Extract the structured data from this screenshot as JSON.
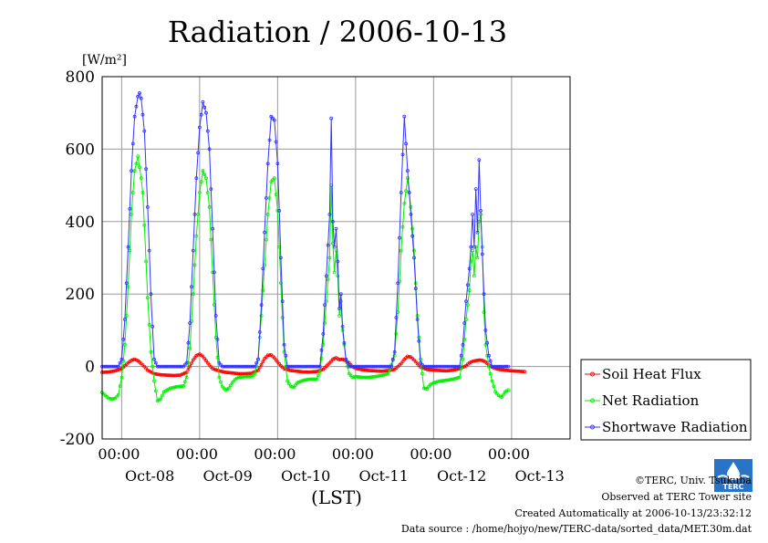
{
  "chart_data": {
    "type": "line",
    "title": "Radiation / 2006-10-13",
    "ylabel": "[W/m²]",
    "xlabel": "(LST)",
    "ylim": [
      -200,
      800
    ],
    "yticks": [
      -200,
      0,
      200,
      400,
      600,
      800
    ],
    "x_range_hours": [
      -6,
      138
    ],
    "x_tick_labels": [
      {
        "time": "00:00",
        "date": "Oct-08"
      },
      {
        "time": "00:00",
        "date": "Oct-09"
      },
      {
        "time": "00:00",
        "date": "Oct-10"
      },
      {
        "time": "00:00",
        "date": "Oct-11"
      },
      {
        "time": "00:00",
        "date": "Oct-12"
      },
      {
        "time": "00:00",
        "date": "Oct-13"
      }
    ],
    "grid": true,
    "legend_position": "right",
    "series": [
      {
        "name": "Soil Heat Flux",
        "color": "#ff0000",
        "points": [
          [
            -6,
            -16
          ],
          [
            -4,
            -15
          ],
          [
            -2,
            -12
          ],
          [
            0,
            -6
          ],
          [
            2,
            10
          ],
          [
            3,
            17
          ],
          [
            4,
            20
          ],
          [
            5,
            16
          ],
          [
            6,
            8
          ],
          [
            7,
            0
          ],
          [
            8,
            -10
          ],
          [
            10,
            -20
          ],
          [
            12,
            -23
          ],
          [
            14,
            -24
          ],
          [
            16,
            -25
          ],
          [
            18,
            -24
          ],
          [
            20,
            -16
          ],
          [
            21,
            0
          ],
          [
            22,
            18
          ],
          [
            23,
            30
          ],
          [
            24,
            34
          ],
          [
            25,
            28
          ],
          [
            26,
            16
          ],
          [
            27,
            4
          ],
          [
            28,
            -6
          ],
          [
            30,
            -12
          ],
          [
            32,
            -16
          ],
          [
            34,
            -18
          ],
          [
            36,
            -20
          ],
          [
            38,
            -20
          ],
          [
            40,
            -19
          ],
          [
            42,
            -10
          ],
          [
            43,
            5
          ],
          [
            44,
            22
          ],
          [
            45,
            31
          ],
          [
            46,
            32
          ],
          [
            47,
            24
          ],
          [
            48,
            12
          ],
          [
            49,
            2
          ],
          [
            50,
            -6
          ],
          [
            52,
            -11
          ],
          [
            54,
            -13
          ],
          [
            56,
            -15
          ],
          [
            58,
            -15
          ],
          [
            60,
            -14
          ],
          [
            62,
            -8
          ],
          [
            64,
            10
          ],
          [
            65,
            20
          ],
          [
            66,
            24
          ],
          [
            67,
            19
          ],
          [
            68,
            20
          ],
          [
            69,
            16
          ],
          [
            70,
            10
          ],
          [
            71,
            0
          ],
          [
            72,
            -5
          ],
          [
            74,
            -9
          ],
          [
            76,
            -11
          ],
          [
            78,
            -12
          ],
          [
            80,
            -13
          ],
          [
            82,
            -11
          ],
          [
            84,
            -8
          ],
          [
            86,
            8
          ],
          [
            87,
            20
          ],
          [
            88,
            28
          ],
          [
            89,
            26
          ],
          [
            90,
            18
          ],
          [
            91,
            8
          ],
          [
            92,
            -2
          ],
          [
            94,
            -8
          ],
          [
            96,
            -10
          ],
          [
            98,
            -11
          ],
          [
            100,
            -12
          ],
          [
            102,
            -10
          ],
          [
            104,
            -6
          ],
          [
            106,
            2
          ],
          [
            107,
            10
          ],
          [
            108,
            14
          ],
          [
            109,
            16
          ],
          [
            110,
            18
          ],
          [
            111,
            17
          ],
          [
            112,
            12
          ],
          [
            113,
            5
          ],
          [
            114,
            -2
          ],
          [
            116,
            -8
          ],
          [
            118,
            -10
          ],
          [
            120,
            -12
          ],
          [
            122,
            -13
          ],
          [
            124,
            -14
          ]
        ]
      },
      {
        "name": "Net Radiation",
        "color": "#00ee00",
        "points": [
          [
            -6,
            -72
          ],
          [
            -5,
            -80
          ],
          [
            -4,
            -88
          ],
          [
            -3,
            -90
          ],
          [
            -2,
            -88
          ],
          [
            -1,
            -78
          ],
          [
            0,
            -30
          ],
          [
            1,
            60
          ],
          [
            2,
            220
          ],
          [
            3,
            420
          ],
          [
            4,
            540
          ],
          [
            5,
            580
          ],
          [
            6,
            520
          ],
          [
            6.5,
            480
          ],
          [
            7,
            390
          ],
          [
            8,
            190
          ],
          [
            9,
            40
          ],
          [
            10,
            -40
          ],
          [
            11,
            -95
          ],
          [
            12,
            -90
          ],
          [
            13,
            -70
          ],
          [
            15,
            -60
          ],
          [
            17,
            -56
          ],
          [
            19,
            -54
          ],
          [
            20,
            -30
          ],
          [
            21,
            50
          ],
          [
            22,
            200
          ],
          [
            23,
            360
          ],
          [
            24,
            480
          ],
          [
            25,
            540
          ],
          [
            26,
            520
          ],
          [
            27,
            440
          ],
          [
            28,
            260
          ],
          [
            29,
            80
          ],
          [
            30,
            -30
          ],
          [
            31,
            -55
          ],
          [
            32,
            -65
          ],
          [
            33,
            -60
          ],
          [
            34,
            -45
          ],
          [
            35,
            -35
          ],
          [
            36,
            -30
          ],
          [
            38,
            -28
          ],
          [
            40,
            -28
          ],
          [
            41,
            -20
          ],
          [
            42,
            20
          ],
          [
            43,
            140
          ],
          [
            44,
            280
          ],
          [
            45,
            420
          ],
          [
            46,
            510
          ],
          [
            47,
            520
          ],
          [
            48,
            430
          ],
          [
            49,
            230
          ],
          [
            50,
            40
          ],
          [
            51,
            -40
          ],
          [
            52,
            -55
          ],
          [
            53,
            -58
          ],
          [
            54,
            -45
          ],
          [
            56,
            -38
          ],
          [
            58,
            -35
          ],
          [
            60,
            -35
          ],
          [
            61,
            -15
          ],
          [
            62,
            60
          ],
          [
            63,
            180
          ],
          [
            64,
            300
          ],
          [
            64.5,
            500
          ],
          [
            65,
            340
          ],
          [
            65.5,
            260
          ],
          [
            66,
            320
          ],
          [
            66.5,
            250
          ],
          [
            67,
            140
          ],
          [
            67.5,
            180
          ],
          [
            68,
            100
          ],
          [
            69,
            20
          ],
          [
            70,
            -20
          ],
          [
            71,
            -30
          ],
          [
            72,
            -28
          ],
          [
            74,
            -30
          ],
          [
            76,
            -30
          ],
          [
            78,
            -28
          ],
          [
            80,
            -25
          ],
          [
            82,
            -20
          ],
          [
            84,
            30
          ],
          [
            85,
            150
          ],
          [
            86,
            320
          ],
          [
            87,
            450
          ],
          [
            88,
            520
          ],
          [
            89,
            440
          ],
          [
            90,
            320
          ],
          [
            91,
            140
          ],
          [
            92,
            20
          ],
          [
            93,
            -60
          ],
          [
            94,
            -62
          ],
          [
            95,
            -50
          ],
          [
            96,
            -45
          ],
          [
            98,
            -40
          ],
          [
            100,
            -38
          ],
          [
            102,
            -35
          ],
          [
            104,
            -30
          ],
          [
            105,
            20
          ],
          [
            106,
            130
          ],
          [
            107,
            210
          ],
          [
            107.5,
            290
          ],
          [
            108,
            320
          ],
          [
            108.5,
            250
          ],
          [
            109,
            330
          ],
          [
            109.5,
            300
          ],
          [
            110,
            400
          ],
          [
            110.5,
            420
          ],
          [
            111,
            330
          ],
          [
            111.5,
            150
          ],
          [
            112,
            60
          ],
          [
            113,
            0
          ],
          [
            114,
            -40
          ],
          [
            115,
            -70
          ],
          [
            116,
            -80
          ],
          [
            117,
            -85
          ],
          [
            118,
            -70
          ],
          [
            119,
            -65
          ]
        ]
      },
      {
        "name": "Shortwave Radiation",
        "color": "#3333ff",
        "points": [
          [
            -6,
            0
          ],
          [
            -1,
            0
          ],
          [
            0,
            20
          ],
          [
            1,
            130
          ],
          [
            2,
            330
          ],
          [
            3,
            540
          ],
          [
            4,
            690
          ],
          [
            5,
            745
          ],
          [
            5.5,
            755
          ],
          [
            6,
            740
          ],
          [
            7,
            650
          ],
          [
            8,
            440
          ],
          [
            9,
            200
          ],
          [
            10,
            20
          ],
          [
            11,
            0
          ],
          [
            19,
            0
          ],
          [
            20,
            10
          ],
          [
            21,
            120
          ],
          [
            22,
            320
          ],
          [
            23,
            520
          ],
          [
            24,
            660
          ],
          [
            25,
            730
          ],
          [
            26,
            700
          ],
          [
            27,
            600
          ],
          [
            28,
            380
          ],
          [
            29,
            140
          ],
          [
            30,
            10
          ],
          [
            31,
            0
          ],
          [
            41,
            0
          ],
          [
            42,
            20
          ],
          [
            43,
            170
          ],
          [
            44,
            370
          ],
          [
            45,
            560
          ],
          [
            46,
            690
          ],
          [
            47,
            680
          ],
          [
            48,
            560
          ],
          [
            49,
            300
          ],
          [
            50,
            60
          ],
          [
            51,
            0
          ],
          [
            61,
            0
          ],
          [
            62,
            90
          ],
          [
            63,
            250
          ],
          [
            64,
            420
          ],
          [
            64.5,
            685
          ],
          [
            65,
            400
          ],
          [
            65.5,
            330
          ],
          [
            66,
            380
          ],
          [
            66.5,
            290
          ],
          [
            67,
            160
          ],
          [
            67.5,
            200
          ],
          [
            68,
            110
          ],
          [
            69,
            20
          ],
          [
            70,
            0
          ],
          [
            83,
            0
          ],
          [
            84,
            40
          ],
          [
            85,
            230
          ],
          [
            86,
            480
          ],
          [
            87,
            690
          ],
          [
            88,
            540
          ],
          [
            89,
            420
          ],
          [
            90,
            300
          ],
          [
            91,
            130
          ],
          [
            92,
            10
          ],
          [
            93,
            0
          ],
          [
            104,
            0
          ],
          [
            105,
            60
          ],
          [
            106,
            180
          ],
          [
            107,
            270
          ],
          [
            107.5,
            330
          ],
          [
            108,
            420
          ],
          [
            108.5,
            330
          ],
          [
            109,
            490
          ],
          [
            109.5,
            370
          ],
          [
            110,
            570
          ],
          [
            110.5,
            430
          ],
          [
            111,
            310
          ],
          [
            111.5,
            200
          ],
          [
            112,
            100
          ],
          [
            113,
            30
          ],
          [
            114,
            0
          ],
          [
            119,
            0
          ]
        ]
      }
    ]
  },
  "credits": {
    "copyright": "©TERC, Univ. Tsukuba",
    "site": "Observed at TERC Tower site",
    "created": "Created Automatically at 2006-10-13/23:32:12",
    "source": "Data source : /home/hojyo/new/TERC-data/sorted_data/MET.30m.dat",
    "logo_text": "TERC"
  }
}
